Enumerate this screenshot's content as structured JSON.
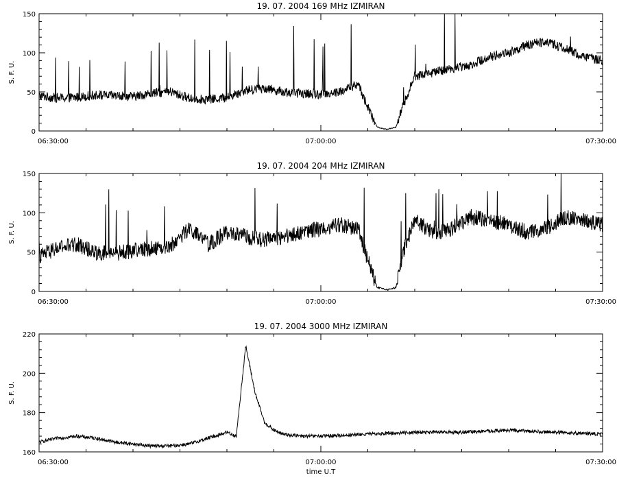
{
  "chart_data": [
    {
      "type": "line",
      "title": "19.  07.  2004    169  MHz     IZMIRAN",
      "ylabel": "S. F. U.",
      "xlabel": "",
      "x_ticks": [
        "06:30:00",
        "07:00:00",
        "07:30:00"
      ],
      "y_ticks": [
        0,
        50,
        100,
        150
      ],
      "ylim": [
        0,
        150
      ],
      "xlim": [
        "06:30:00",
        "07:30:00"
      ],
      "series": [
        {
          "x": [
            "06:30",
            "06:32",
            "06:34",
            "06:36",
            "06:38",
            "06:40",
            "06:42",
            "06:44",
            "06:46",
            "06:48",
            "06:50",
            "06:52",
            "06:54",
            "06:56",
            "06:58",
            "07:00",
            "07:02",
            "07:04",
            "07:05",
            "07:06",
            "07:07",
            "07:08",
            "07:09",
            "07:10",
            "07:12",
            "07:14",
            "07:16",
            "07:18",
            "07:20",
            "07:22",
            "07:24",
            "07:26",
            "07:28",
            "07:30"
          ],
          "values": [
            45,
            42,
            43,
            46,
            45,
            44,
            48,
            50,
            42,
            40,
            43,
            52,
            55,
            50,
            48,
            47,
            50,
            60,
            30,
            5,
            2,
            5,
            40,
            70,
            75,
            80,
            85,
            95,
            100,
            110,
            115,
            105,
            95,
            90
          ]
        }
      ]
    },
    {
      "type": "line",
      "title": "19.  07.  2004    204  MHz     IZMIRAN",
      "ylabel": "S. F. U.",
      "xlabel": "",
      "x_ticks": [
        "06:30:00",
        "07:00:00",
        "07:30:00"
      ],
      "y_ticks": [
        0,
        50,
        100,
        150
      ],
      "ylim": [
        0,
        150
      ],
      "xlim": [
        "06:30:00",
        "07:30:00"
      ],
      "series": [
        {
          "x": [
            "06:30",
            "06:32",
            "06:34",
            "06:36",
            "06:38",
            "06:40",
            "06:42",
            "06:44",
            "06:46",
            "06:48",
            "06:50",
            "06:52",
            "06:54",
            "06:56",
            "06:58",
            "07:00",
            "07:02",
            "07:04",
            "07:05",
            "07:06",
            "07:07",
            "07:08",
            "07:09",
            "07:10",
            "07:12",
            "07:14",
            "07:16",
            "07:18",
            "07:20",
            "07:22",
            "07:24",
            "07:26",
            "07:28",
            "07:30"
          ],
          "values": [
            45,
            55,
            60,
            50,
            48,
            52,
            55,
            58,
            80,
            60,
            75,
            70,
            65,
            70,
            75,
            80,
            85,
            80,
            40,
            5,
            2,
            5,
            60,
            90,
            75,
            80,
            95,
            90,
            85,
            75,
            80,
            95,
            90,
            85
          ]
        }
      ]
    },
    {
      "type": "line",
      "title": "19.  07.  2004    3000  MHz     IZMIRAN",
      "ylabel": "S. F. U.",
      "xlabel": "time  U.T",
      "x_ticks": [
        "06:30:00",
        "07:00:00",
        "07:30:00"
      ],
      "y_ticks": [
        160,
        180,
        200,
        220
      ],
      "ylim": [
        160,
        220
      ],
      "xlim": [
        "06:30:00",
        "07:30:00"
      ],
      "series": [
        {
          "x": [
            "06:30",
            "06:32",
            "06:34",
            "06:36",
            "06:38",
            "06:40",
            "06:42",
            "06:44",
            "06:46",
            "06:48",
            "06:50",
            "06:51",
            "06:52",
            "06:53",
            "06:54",
            "06:55",
            "06:56",
            "06:58",
            "07:00",
            "07:05",
            "07:10",
            "07:15",
            "07:20",
            "07:25",
            "07:30"
          ],
          "values": [
            165,
            167,
            168,
            167,
            165,
            164,
            163,
            163,
            164,
            167,
            170,
            168,
            214,
            190,
            175,
            171,
            169,
            168,
            168,
            169,
            170,
            170,
            171,
            170,
            169
          ]
        }
      ]
    }
  ]
}
